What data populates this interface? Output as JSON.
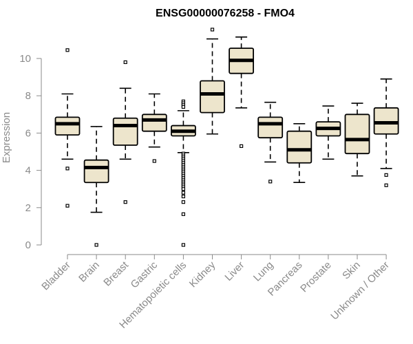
{
  "chart_data": {
    "type": "box",
    "title": "ENSG00000076258 - FMO4",
    "ylabel": "Expression",
    "ylim": [
      0,
      11.5
    ],
    "yticks": [
      0,
      2,
      4,
      6,
      8,
      10
    ],
    "box_fill": "#ede5cc",
    "categories": [
      "Bladder",
      "Brain",
      "Breast",
      "Gastric",
      "Hematopoietic cells",
      "Kidney",
      "Liver",
      "Lung",
      "Pancreas",
      "Prostate",
      "Skin",
      "Unknown / Other"
    ],
    "boxes": [
      {
        "whisker_low": 4.6,
        "q1": 5.9,
        "median": 6.5,
        "q3": 6.85,
        "whisker_high": 8.1,
        "outliers": [
          10.45,
          4.1,
          2.1
        ]
      },
      {
        "whisker_low": 1.75,
        "q1": 3.35,
        "median": 4.15,
        "q3": 4.55,
        "whisker_high": 6.35,
        "outliers": [
          0.0
        ]
      },
      {
        "whisker_low": 4.6,
        "q1": 5.35,
        "median": 6.4,
        "q3": 6.8,
        "whisker_high": 8.4,
        "outliers": [
          9.8,
          2.3
        ]
      },
      {
        "whisker_low": 5.25,
        "q1": 6.1,
        "median": 6.7,
        "q3": 7.0,
        "whisker_high": 8.1,
        "outliers": [
          4.5
        ]
      },
      {
        "whisker_low": 4.95,
        "q1": 5.85,
        "median": 6.1,
        "q3": 6.4,
        "whisker_high": 7.2,
        "outliers": [
          7.7,
          7.6,
          7.5,
          7.4,
          4.9,
          4.8,
          4.7,
          4.6,
          4.5,
          4.4,
          4.3,
          4.2,
          4.1,
          4.0,
          3.9,
          3.8,
          3.7,
          3.6,
          3.5,
          3.4,
          3.3,
          3.2,
          3.1,
          3.0,
          2.8,
          2.6,
          2.3,
          1.65,
          0.0
        ]
      },
      {
        "whisker_low": 5.95,
        "q1": 7.1,
        "median": 8.1,
        "q3": 8.8,
        "whisker_high": 11.05,
        "outliers": [
          11.55
        ]
      },
      {
        "whisker_low": 7.35,
        "q1": 9.2,
        "median": 9.9,
        "q3": 10.55,
        "whisker_high": 11.15,
        "outliers": [
          5.3
        ]
      },
      {
        "whisker_low": 4.45,
        "q1": 5.75,
        "median": 6.5,
        "q3": 6.85,
        "whisker_high": 7.65,
        "outliers": [
          3.4
        ]
      },
      {
        "whisker_low": 3.35,
        "q1": 4.4,
        "median": 5.1,
        "q3": 6.1,
        "whisker_high": 6.5,
        "outliers": []
      },
      {
        "whisker_low": 4.6,
        "q1": 5.85,
        "median": 6.25,
        "q3": 6.6,
        "whisker_high": 7.45,
        "outliers": []
      },
      {
        "whisker_low": 3.7,
        "q1": 4.9,
        "median": 5.65,
        "q3": 7.0,
        "whisker_high": 7.6,
        "outliers": []
      },
      {
        "whisker_low": 4.1,
        "q1": 5.95,
        "median": 6.55,
        "q3": 7.35,
        "whisker_high": 8.9,
        "outliers": [
          3.75,
          3.2
        ]
      }
    ]
  }
}
